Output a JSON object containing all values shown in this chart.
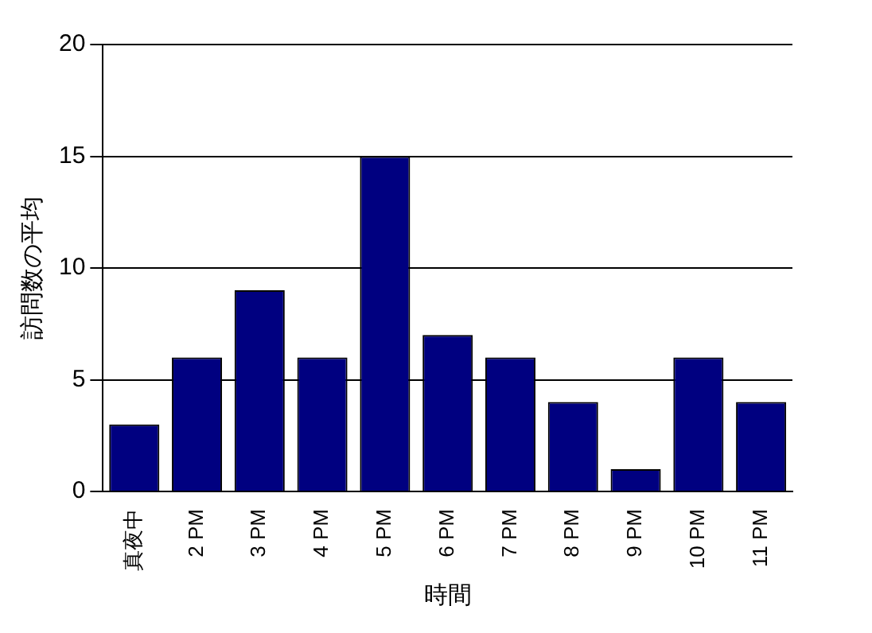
{
  "chart_data": {
    "type": "bar",
    "xlabel": "時間",
    "ylabel": "訪問数の平均",
    "categories": [
      "真夜中",
      "2 PM",
      "3 PM",
      "4 PM",
      "5 PM",
      "6 PM",
      "7 PM",
      "8 PM",
      "9 PM",
      "10 PM",
      "11 PM"
    ],
    "values": [
      3,
      6,
      9,
      6,
      15,
      7,
      6,
      4,
      1,
      6,
      4
    ],
    "color": "#000080",
    "ylim": [
      0,
      20
    ],
    "yticks": [
      0,
      5,
      10,
      15,
      20
    ],
    "grid": "y",
    "legend": false
  }
}
